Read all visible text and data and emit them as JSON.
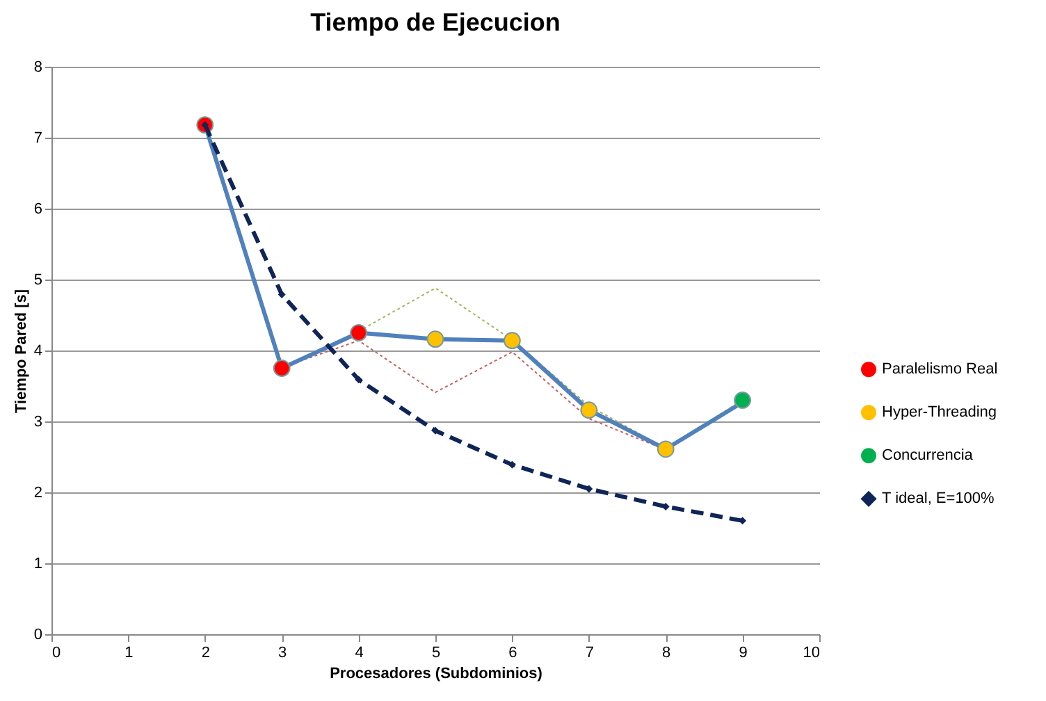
{
  "chart_data": {
    "type": "line",
    "title": "Tiempo de Ejecucion",
    "xlabel": "Procesadores (Subdominios)",
    "ylabel": "Tiempo Pared [s]",
    "xlim": [
      0,
      10
    ],
    "xticks": [
      0,
      1,
      2,
      3,
      4,
      5,
      6,
      7,
      8,
      9,
      10
    ],
    "ylim": [
      0,
      8
    ],
    "yticks": [
      0,
      1,
      2,
      3,
      4,
      5,
      6,
      7,
      8
    ],
    "grid": "y",
    "legend": "right",
    "series": [
      {
        "type": "line",
        "color": "#cd5c5c",
        "line_style": "dotted",
        "marker": "none",
        "x": [
          2,
          3,
          4,
          5,
          6,
          7,
          8,
          9
        ],
        "values": [
          7.18,
          3.76,
          4.14,
          3.41,
          3.98,
          3.04,
          2.6,
          3.27
        ]
      },
      {
        "type": "line",
        "color": "#a8b560",
        "line_style": "dotted",
        "marker": "none",
        "x": [
          2,
          3,
          4,
          5,
          6,
          7,
          8,
          9
        ],
        "values": [
          7.18,
          3.76,
          4.27,
          4.88,
          4.15,
          3.22,
          2.62,
          3.3
        ]
      },
      {
        "type": "line",
        "color": "#4f81bd",
        "line_style": "solid",
        "marker": "none",
        "x": [
          2,
          3,
          4,
          5,
          6,
          7,
          8,
          9
        ],
        "values": [
          7.18,
          3.75,
          4.25,
          4.16,
          4.14,
          3.16,
          2.61,
          3.27
        ]
      },
      {
        "type": "scatter",
        "name": "Paralelismo Real",
        "color": "#ff0000",
        "marker": "circle",
        "x": [
          2,
          3,
          4
        ],
        "values": [
          7.18,
          3.75,
          4.25
        ]
      },
      {
        "type": "scatter",
        "name": "Hyper-Threading",
        "color": "#ffc000",
        "marker": "circle",
        "x": [
          5,
          6,
          7,
          8
        ],
        "values": [
          4.16,
          4.14,
          3.16,
          2.61
        ]
      },
      {
        "type": "scatter",
        "name": "Concurrencia",
        "color": "#00b050",
        "marker": "circle",
        "x": [
          9
        ],
        "values": [
          3.3
        ]
      },
      {
        "type": "line",
        "name": "T ideal, E=100%",
        "color": "#0f2557",
        "line_style": "dashed",
        "marker": "diamond",
        "x": [
          2,
          3,
          4,
          5,
          6,
          7,
          8,
          9
        ],
        "values": [
          7.18,
          4.79,
          3.59,
          2.87,
          2.39,
          2.05,
          1.8,
          1.6
        ]
      }
    ]
  }
}
